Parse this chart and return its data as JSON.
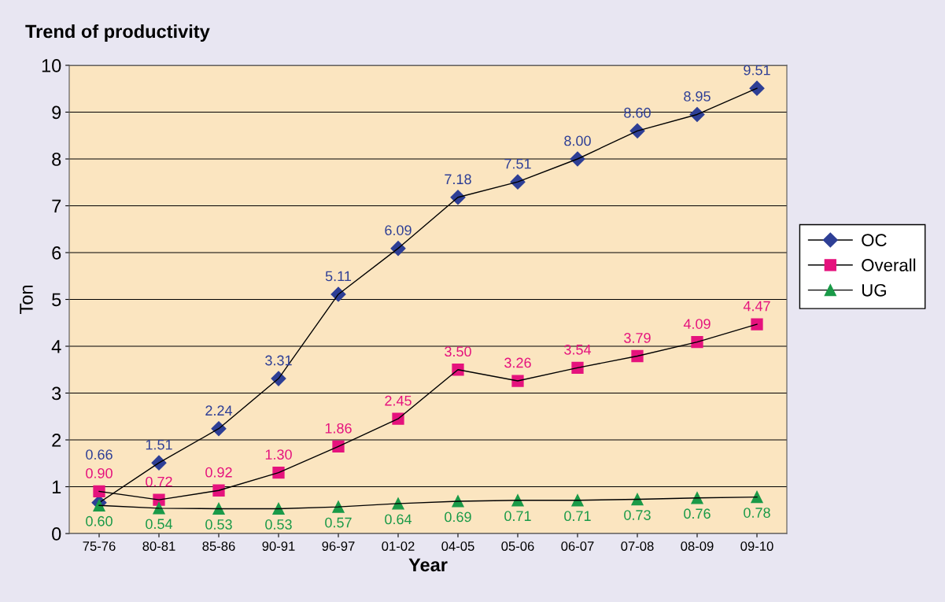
{
  "chart_data": {
    "type": "line",
    "title": "Trend of productivity",
    "xlabel": "Year",
    "ylabel": "Ton",
    "categories": [
      "75-76",
      "80-81",
      "85-86",
      "90-91",
      "96-97",
      "01-02",
      "04-05",
      "05-06",
      "06-07",
      "07-08",
      "08-09",
      "09-10"
    ],
    "series": [
      {
        "name": "OC",
        "color": "#2e3f96",
        "marker": "diamond",
        "values": [
          0.66,
          1.51,
          2.24,
          3.31,
          5.11,
          6.09,
          7.18,
          7.51,
          8.0,
          8.6,
          8.95,
          9.51
        ],
        "value_labels": [
          "0.66",
          "1.51",
          "2.24",
          "3.31",
          "5.11",
          "6.09",
          "7.18",
          "7.51",
          "8.00",
          "8.60",
          "8.95",
          "9.51"
        ]
      },
      {
        "name": "Overall",
        "color": "#e5127d",
        "marker": "square",
        "values": [
          0.9,
          0.72,
          0.92,
          1.3,
          1.86,
          2.45,
          3.5,
          3.26,
          3.54,
          3.79,
          4.09,
          4.47
        ],
        "value_labels": [
          "0.90",
          "0.72",
          "0.92",
          "1.30",
          "1.86",
          "2.45",
          "3.50",
          "3.26",
          "3.54",
          "3.79",
          "4.09",
          "4.47"
        ]
      },
      {
        "name": "UG",
        "color": "#1a9a48",
        "marker": "triangle",
        "values": [
          0.6,
          0.54,
          0.53,
          0.53,
          0.57,
          0.64,
          0.69,
          0.71,
          0.71,
          0.73,
          0.76,
          0.78
        ],
        "value_labels": [
          "0.60",
          "0.54",
          "0.53",
          "0.53",
          "0.57",
          "0.64",
          "0.69",
          "0.71",
          "0.71",
          "0.73",
          "0.76",
          "0.78"
        ]
      }
    ],
    "ylim": [
      0,
      10
    ],
    "yticks": [
      0,
      1,
      2,
      3,
      4,
      5,
      6,
      7,
      8,
      9,
      10
    ],
    "grid": "y",
    "legend": "right",
    "line_style": "solid"
  }
}
